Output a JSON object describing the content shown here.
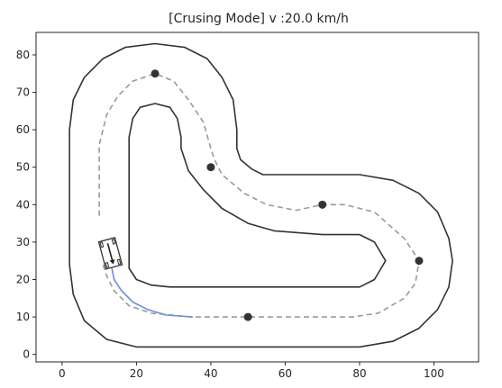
{
  "chart_data": {
    "type": "line",
    "title": "[Crusing Mode]  v :20.0 km/h",
    "xlabel": "",
    "ylabel": "",
    "xlim": [
      -7,
      112
    ],
    "ylim": [
      -2,
      86
    ],
    "xticks": [
      0,
      20,
      40,
      60,
      80,
      100
    ],
    "yticks": [
      0,
      10,
      20,
      30,
      40,
      50,
      60,
      70,
      80
    ],
    "grid": false,
    "series": [
      {
        "role": "outer-track-boundary",
        "color": "#333333",
        "style": "solid",
        "points": [
          [
            2,
            30
          ],
          [
            2,
            60
          ],
          [
            3,
            68
          ],
          [
            6,
            74
          ],
          [
            11,
            79
          ],
          [
            17,
            82
          ],
          [
            25,
            83
          ],
          [
            33,
            82
          ],
          [
            39,
            79
          ],
          [
            43,
            74
          ],
          [
            46,
            68
          ],
          [
            47,
            60
          ],
          [
            47,
            55
          ],
          [
            48,
            52
          ],
          [
            51,
            49.5
          ],
          [
            54,
            48
          ],
          [
            80,
            48
          ],
          [
            89,
            46.5
          ],
          [
            96,
            43
          ],
          [
            101,
            38
          ],
          [
            104,
            31
          ],
          [
            105,
            25
          ],
          [
            104,
            18
          ],
          [
            101,
            12
          ],
          [
            96,
            7
          ],
          [
            89,
            3.5
          ],
          [
            80,
            2
          ],
          [
            20,
            2
          ],
          [
            12,
            4
          ],
          [
            6,
            9
          ],
          [
            3,
            16
          ],
          [
            2,
            24
          ],
          [
            2,
            30
          ]
        ]
      },
      {
        "role": "inner-track-boundary",
        "color": "#333333",
        "style": "solid",
        "points": [
          [
            18,
            58
          ],
          [
            19,
            63
          ],
          [
            21,
            66
          ],
          [
            25,
            67
          ],
          [
            29,
            66
          ],
          [
            31,
            63
          ],
          [
            32,
            58
          ],
          [
            32,
            55
          ],
          [
            34,
            49
          ],
          [
            38,
            44
          ],
          [
            43,
            39
          ],
          [
            50,
            35
          ],
          [
            57,
            33
          ],
          [
            70,
            32
          ],
          [
            80,
            32
          ],
          [
            84,
            30
          ],
          [
            87,
            25
          ],
          [
            84,
            20
          ],
          [
            80,
            18
          ],
          [
            40,
            18
          ],
          [
            29,
            18
          ],
          [
            24,
            18.5
          ],
          [
            20,
            20
          ],
          [
            18,
            23
          ],
          [
            18,
            26
          ],
          [
            18,
            58
          ]
        ]
      },
      {
        "role": "reference-centerline",
        "color": "#999999",
        "style": "dashed",
        "points": [
          [
            10,
            37
          ],
          [
            10,
            48
          ],
          [
            10,
            56
          ],
          [
            12,
            64
          ],
          [
            15,
            69
          ],
          [
            19,
            73
          ],
          [
            25,
            75
          ],
          [
            30,
            73
          ],
          [
            34,
            68
          ],
          [
            38,
            62
          ],
          [
            40,
            55
          ],
          [
            41,
            52
          ],
          [
            43,
            48
          ],
          [
            49,
            43
          ],
          [
            55,
            40
          ],
          [
            63,
            38.5
          ],
          [
            70,
            40
          ],
          [
            76,
            40
          ],
          [
            84,
            38
          ],
          [
            92,
            31
          ],
          [
            96,
            25
          ],
          [
            95,
            19
          ],
          [
            92,
            15
          ],
          [
            85,
            11
          ],
          [
            78,
            10
          ],
          [
            50,
            10
          ],
          [
            35,
            10
          ],
          [
            24,
            11
          ],
          [
            18,
            13
          ],
          [
            14,
            17
          ],
          [
            12,
            21
          ],
          [
            11,
            24
          ]
        ]
      },
      {
        "role": "vehicle-trajectory",
        "color": "#6f8fdc",
        "style": "solid",
        "points": [
          [
            13,
            25
          ],
          [
            14,
            20
          ],
          [
            16,
            17
          ],
          [
            19,
            14
          ],
          [
            23,
            12
          ],
          [
            28,
            10.5
          ],
          [
            35,
            10
          ]
        ]
      }
    ],
    "waypoints": [
      [
        25,
        75
      ],
      [
        40,
        50
      ],
      [
        70,
        40
      ],
      [
        96,
        25
      ],
      [
        50,
        10
      ]
    ],
    "vehicle": {
      "center": [
        13,
        27
      ],
      "length": 7.5,
      "width": 4.5,
      "heading_deg": -105,
      "arrow_color": "#222222"
    }
  }
}
